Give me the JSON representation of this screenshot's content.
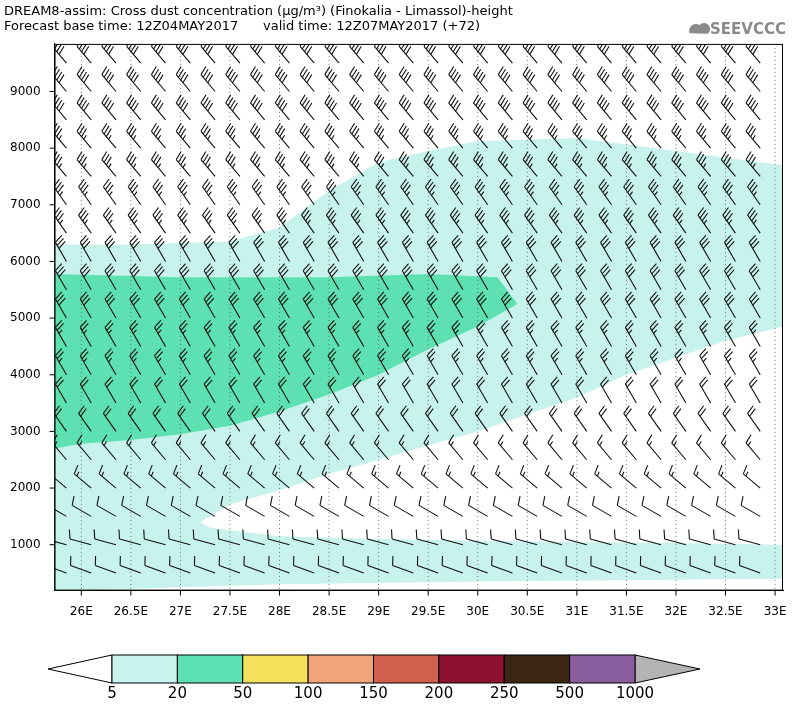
{
  "chart_data": {
    "type": "cross_section",
    "title": "DREAM8-assim: Cross dust concentration (µg/m³) (Finokalia - Limassol)-height",
    "subtitle": "Forecast base time: 12Z04MAY2017      valid time: 12Z07MAY2017 (+72)",
    "logo": "SEEVCCC",
    "xlim": [
      25.73,
      33.08
    ],
    "xticks": [
      {
        "value": 26,
        "label": "26E"
      },
      {
        "value": 26.5,
        "label": "26.5E"
      },
      {
        "value": 27,
        "label": "27E"
      },
      {
        "value": 27.5,
        "label": "27.5E"
      },
      {
        "value": 28,
        "label": "28E"
      },
      {
        "value": 28.5,
        "label": "28.5E"
      },
      {
        "value": 29,
        "label": "29E"
      },
      {
        "value": 29.5,
        "label": "29.5E"
      },
      {
        "value": 30,
        "label": "30E"
      },
      {
        "value": 30.5,
        "label": "30.5E"
      },
      {
        "value": 31,
        "label": "31E"
      },
      {
        "value": 31.5,
        "label": "31.5E"
      },
      {
        "value": 32,
        "label": "32E"
      },
      {
        "value": 32.5,
        "label": "32.5E"
      },
      {
        "value": 33,
        "label": "33E"
      }
    ],
    "ylim": [
      190,
      9840
    ],
    "yticks": [
      1000,
      2000,
      3000,
      4000,
      5000,
      6000,
      7000,
      8000,
      9000
    ],
    "grid": "x",
    "color_bar": {
      "levels": [
        5,
        20,
        50,
        100,
        150,
        200,
        250,
        500,
        1000
      ],
      "colors": [
        "#c8f2ec",
        "#5ee1b2",
        "#f4e25c",
        "#f2a47a",
        "#d0604e",
        "#8e1030",
        "#3b2614",
        "#8a5d9e"
      ],
      "under_color": "#ffffff",
      "over_color": "#b4b4b4"
    },
    "contours": [
      {
        "range": [
          5,
          20
        ],
        "x": [
          25.73,
          25.73,
          26.5,
          27.5,
          28,
          28.5,
          29,
          29.5,
          30,
          31,
          32,
          33.08,
          33.08,
          32.5,
          32,
          31.5,
          31,
          30.5,
          30,
          29.5,
          29,
          28.5,
          28,
          27.5,
          27.2,
          27.3,
          28,
          29,
          30,
          31,
          32,
          33.08,
          33.08,
          32,
          30,
          28,
          27,
          26
        ],
        "y": [
          190,
          6300,
          6300,
          6350,
          6600,
          7250,
          7750,
          7950,
          8120,
          8180,
          7950,
          7700,
          4850,
          4600,
          4300,
          4000,
          3600,
          3300,
          3000,
          2750,
          2500,
          2250,
          1960,
          1710,
          1400,
          1300,
          1150,
          1100,
          1070,
          1050,
          1030,
          1000,
          400,
          380,
          350,
          300,
          250,
          190
        ]
      },
      {
        "range": [
          20,
          50
        ],
        "x": [
          25.73,
          25.73,
          27,
          28.5,
          29.5,
          30.2,
          30.4,
          30,
          29.5,
          29,
          28.5,
          28,
          27.5,
          27,
          26.5,
          26
        ],
        "y": [
          2700,
          5780,
          5720,
          5720,
          5780,
          5720,
          5250,
          4850,
          4450,
          4000,
          3650,
          3350,
          3100,
          2950,
          2850,
          2780
        ]
      }
    ],
    "wind_barbs": {
      "x": [
        25.85,
        26.1,
        26.35,
        26.6,
        26.85,
        27.1,
        27.35,
        27.6,
        27.85,
        28.1,
        28.35,
        28.6,
        28.85,
        29.1,
        29.35,
        29.6,
        29.85,
        30.1,
        30.35,
        30.6,
        30.85,
        31.1,
        31.35,
        31.6,
        31.85,
        32.1,
        32.35,
        32.6,
        32.85
      ],
      "heights": [
        500,
        1000,
        1500,
        2000,
        2500,
        3000,
        3500,
        4000,
        4500,
        5000,
        5500,
        6000,
        6500,
        7000,
        7500,
        8000,
        8500,
        9000,
        9500
      ],
      "direction": [
        290,
        285,
        300,
        310,
        320,
        325,
        330,
        330,
        330,
        330,
        330,
        330,
        325,
        325,
        320,
        320,
        320,
        320,
        320
      ],
      "speed": [
        10,
        10,
        10,
        15,
        15,
        20,
        20,
        25,
        25,
        30,
        30,
        30,
        35,
        35,
        35,
        35,
        40,
        40,
        40
      ]
    }
  }
}
